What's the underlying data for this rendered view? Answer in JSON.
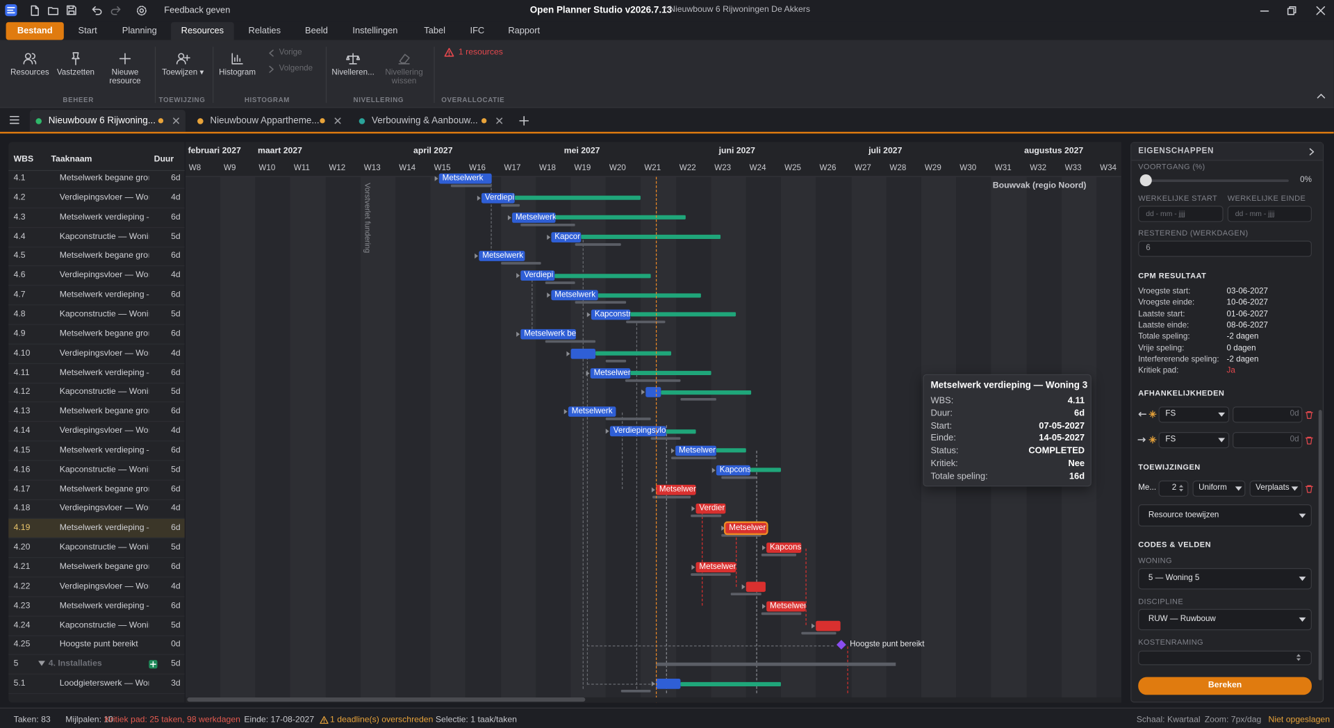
{
  "titlebar": {
    "feedback": "Feedback geven",
    "app_title": "Open Planner Studio v2026.7.13",
    "document": "* Nieuwbouw 6 Rijwoningen De Akkers"
  },
  "menu": {
    "file": "Bestand",
    "tabs": [
      "Start",
      "Planning",
      "Resources",
      "Relaties",
      "Beeld",
      "Instellingen",
      "Tabel",
      "IFC",
      "Rapport"
    ]
  },
  "ribbon": {
    "groups": [
      {
        "label": "BEHEER",
        "buttons": [
          "Resources",
          "Vastzetten",
          "Nieuwe resource"
        ]
      },
      {
        "label": "TOEWIJZING",
        "buttons": [
          "Toewijzen ▾"
        ]
      },
      {
        "label": "HISTOGRAM",
        "buttons": [
          "Histogram"
        ],
        "nav": [
          "Vorige",
          "Volgende"
        ]
      },
      {
        "label": "NIVELLERING",
        "buttons": [
          "Nivelleren...",
          "Nivellering wissen"
        ]
      },
      {
        "label": "OVERALLOCATIE",
        "warning": "1 resources"
      }
    ]
  },
  "document_tabs": [
    "Nieuwbouw 6 Rijwoning...",
    "Nieuwbouw Appartheme...",
    "Verbouwing & Aanbouw..."
  ],
  "table": {
    "columns": [
      "WBS",
      "Taaknaam",
      "Duur"
    ],
    "rows": [
      [
        "4.1",
        "Metselwerk begane gror",
        "6d"
      ],
      [
        "4.2",
        "Verdiepingsvloer — Wor",
        "4d"
      ],
      [
        "4.3",
        "Metselwerk verdieping –",
        "6d"
      ],
      [
        "4.4",
        "Kapconstructie — Wonir",
        "5d"
      ],
      [
        "4.5",
        "Metselwerk begane gror",
        "6d"
      ],
      [
        "4.6",
        "Verdiepingsvloer — Wor",
        "4d"
      ],
      [
        "4.7",
        "Metselwerk verdieping –",
        "6d"
      ],
      [
        "4.8",
        "Kapconstructie — Wonir",
        "5d"
      ],
      [
        "4.9",
        "Metselwerk begane gror",
        "6d"
      ],
      [
        "4.10",
        "Verdiepingsvloer — Wor",
        "4d"
      ],
      [
        "4.11",
        "Metselwerk verdieping –",
        "6d"
      ],
      [
        "4.12",
        "Kapconstructie — Wonir",
        "5d"
      ],
      [
        "4.13",
        "Metselwerk begane gror",
        "6d"
      ],
      [
        "4.14",
        "Verdiepingsvloer — Wor",
        "4d"
      ],
      [
        "4.15",
        "Metselwerk verdieping –",
        "6d"
      ],
      [
        "4.16",
        "Kapconstructie — Wonir",
        "5d"
      ],
      [
        "4.17",
        "Metselwerk begane gror",
        "6d"
      ],
      [
        "4.18",
        "Verdiepingsvloer — Wor",
        "4d"
      ],
      [
        "4.19",
        "Metselwerk verdieping –",
        "6d"
      ],
      [
        "4.20",
        "Kapconstructie — Wonir",
        "5d"
      ],
      [
        "4.21",
        "Metselwerk begane gror",
        "6d"
      ],
      [
        "4.22",
        "Verdiepingsvloer — Wor",
        "4d"
      ],
      [
        "4.23",
        "Metselwerk verdieping –",
        "6d"
      ],
      [
        "4.24",
        "Kapconstructie — Wonir",
        "5d"
      ],
      [
        "4.25",
        "Hoogste punt bereikt",
        "0d"
      ],
      [
        "5",
        "4. Installaties",
        "5d"
      ],
      [
        "5.1",
        "Loodgieterswerk — Wor",
        "3d"
      ]
    ]
  },
  "gantt": {
    "months": [
      "februari 2027",
      "maart 2027",
      "april 2027",
      "mei 2027",
      "juni 2027",
      "juli 2027",
      "augustus 2027"
    ],
    "weeks": [
      "W8",
      "W9",
      "W10",
      "W11",
      "W12",
      "W13",
      "W14",
      "W15",
      "W16",
      "W17",
      "W18",
      "W19",
      "W20",
      "W21",
      "W22",
      "W23",
      "W24",
      "W25",
      "W26",
      "W27",
      "W28",
      "W29",
      "W30",
      "W31",
      "W32",
      "W33",
      "W34"
    ],
    "annotations": {
      "holiday": "Bouwvak (regio Noord)",
      "note": "Vorstverlet fundering"
    },
    "bar_labels": [
      "Metselwerk",
      "Verdiepi",
      "Metselwerk",
      "Kapcor",
      "Metselwerk",
      "Verdiepi",
      "Metselwerk",
      "Kapconstr",
      "Metselwerk be",
      "Metselwer",
      "Metselwerk",
      "Verdiepingsvlo",
      "Metselwer",
      "Kapcons",
      "Metselwer",
      "Verdier",
      "Metselwer",
      "Kapcons",
      "Metselwer",
      "Metselwer"
    ],
    "milestone": "Hoogste punt bereikt"
  },
  "tooltip": {
    "title": "Metselwerk verdieping — Woning 3",
    "rows": [
      [
        "WBS:",
        "4.11"
      ],
      [
        "Duur:",
        "6d"
      ],
      [
        "Start:",
        "07-05-2027"
      ],
      [
        "Einde:",
        "14-05-2027"
      ],
      [
        "Status:",
        "COMPLETED"
      ],
      [
        "Kritiek:",
        "Nee"
      ],
      [
        "Totale speling:",
        "16d"
      ]
    ]
  },
  "properties": {
    "title": "EIGENSCHAPPEN",
    "progress_label": "VOORTGANG (%)",
    "progress": "0%",
    "actual_start_label": "WERKELIJKE START",
    "actual_end_label": "WERKELIJKE EINDE",
    "date_placeholder": "dd - mm - jjjj",
    "remaining_label": "RESTEREND (WERKDAGEN)",
    "remaining": 6,
    "cpm": {
      "title": "CPM RESULTAAT",
      "rows": [
        [
          "Vroegste start:",
          "03-06-2027"
        ],
        [
          "Vroegste einde:",
          "10-06-2027"
        ],
        [
          "Laatste start:",
          "01-06-2027"
        ],
        [
          "Laatste einde:",
          "08-06-2027"
        ],
        [
          "Totale speling:",
          "-2 dagen"
        ],
        [
          "Vrije speling:",
          "0 dagen"
        ],
        [
          "Interfererende speling:",
          "-2 dagen"
        ],
        [
          "Kritiek pad:",
          "Ja"
        ]
      ]
    },
    "dependencies": {
      "title": "AFHANKELIJKHEDEN",
      "rows": [
        {
          "type": "FS",
          "lag": "0d"
        },
        {
          "type": "FS",
          "lag": "0d"
        }
      ]
    },
    "assignments": {
      "title": "TOEWIJZINGEN",
      "rows": [
        {
          "resource": "Me...",
          "units": 2,
          "profile": "Uniform",
          "mode": "Verplaats"
        }
      ],
      "assign": "Resource toewijzen"
    },
    "codes": {
      "title": "CODES & VELDEN",
      "fields": [
        {
          "label": "WONING",
          "value": "5 — Woning 5"
        },
        {
          "label": "DISCIPLINE",
          "value": "RUW — Ruwbouw"
        },
        {
          "label": "KOSTENRAMING"
        }
      ]
    },
    "calculate": "Bereken"
  },
  "statusbar": {
    "left": [
      "Taken: 83",
      "Mijlpalen: 10",
      "Kritiek pad: 25 taken, 98 werkdagen",
      "Einde: 17-08-2027",
      "1 deadline(s) overschreden",
      "Selectie: 1 taak/taken"
    ],
    "right": [
      "Schaal: Kwartaal",
      "Zoom: 7px/dag",
      "Niet opgeslagen"
    ]
  }
}
